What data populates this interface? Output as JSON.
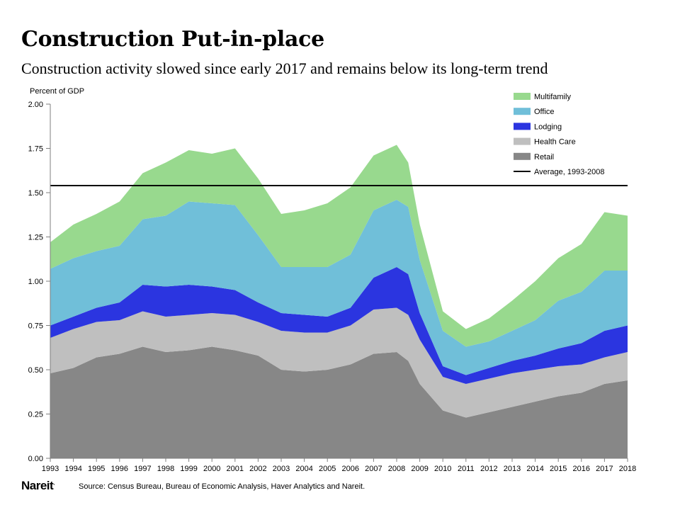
{
  "header": {
    "title": "Construction Put-in-place",
    "subtitle": "Construction activity slowed since early 2017 and remains below its long-term trend"
  },
  "footer": {
    "logo_text": "Nareit",
    "logo_mark": ".",
    "source": "Source: Census Bureau, Bureau of Economic Analysis, Haver Analytics and Nareit."
  },
  "chart_data": {
    "type": "area",
    "stacked": true,
    "ylabel": "Percent of GDP",
    "xlabel": "",
    "ylim": [
      0,
      2
    ],
    "yticks": [
      "0.00",
      "0.25",
      "0.50",
      "0.75",
      "1.00",
      "1.25",
      "1.50",
      "1.75",
      "2.00"
    ],
    "xlim": [
      1993,
      2018
    ],
    "xticks": [
      "1993",
      "1994",
      "1995",
      "1996",
      "1997",
      "1998",
      "1999",
      "2000",
      "2001",
      "2002",
      "2003",
      "2004",
      "2005",
      "2006",
      "2007",
      "2008",
      "2009",
      "2010",
      "2011",
      "2012",
      "2013",
      "2014",
      "2015",
      "2016",
      "2017",
      "2018"
    ],
    "grid": false,
    "legend_position": "top-right",
    "x": [
      1993,
      1994,
      1995,
      1996,
      1997,
      1998,
      1999,
      2000,
      2001,
      2002,
      2003,
      2004,
      2005,
      2006,
      2007,
      2008,
      2008.5,
      2009,
      2010,
      2011,
      2012,
      2013,
      2014,
      2015,
      2016,
      2017,
      2018
    ],
    "series": [
      {
        "name": "Retail",
        "color": "#878787",
        "values": [
          0.48,
          0.51,
          0.57,
          0.59,
          0.63,
          0.6,
          0.61,
          0.63,
          0.61,
          0.58,
          0.5,
          0.49,
          0.5,
          0.53,
          0.59,
          0.6,
          0.55,
          0.42,
          0.27,
          0.23,
          0.26,
          0.29,
          0.32,
          0.35,
          0.37,
          0.42,
          0.44
        ]
      },
      {
        "name": "Health Care",
        "color": "#bfbfbf",
        "values": [
          0.2,
          0.22,
          0.2,
          0.19,
          0.2,
          0.2,
          0.2,
          0.19,
          0.2,
          0.19,
          0.22,
          0.22,
          0.21,
          0.22,
          0.25,
          0.25,
          0.26,
          0.25,
          0.19,
          0.19,
          0.19,
          0.19,
          0.18,
          0.17,
          0.16,
          0.15,
          0.16
        ]
      },
      {
        "name": "Lodging",
        "color": "#2b35e0",
        "values": [
          0.07,
          0.07,
          0.08,
          0.1,
          0.15,
          0.17,
          0.17,
          0.15,
          0.14,
          0.11,
          0.1,
          0.1,
          0.09,
          0.1,
          0.18,
          0.23,
          0.23,
          0.15,
          0.06,
          0.05,
          0.06,
          0.07,
          0.08,
          0.1,
          0.12,
          0.15,
          0.15
        ]
      },
      {
        "name": "Office",
        "color": "#70bfd9",
        "values": [
          0.32,
          0.33,
          0.32,
          0.32,
          0.37,
          0.4,
          0.47,
          0.47,
          0.48,
          0.38,
          0.26,
          0.27,
          0.28,
          0.3,
          0.38,
          0.38,
          0.38,
          0.3,
          0.2,
          0.16,
          0.15,
          0.17,
          0.2,
          0.27,
          0.29,
          0.34,
          0.31
        ]
      },
      {
        "name": "Multifamily",
        "color": "#98d98e",
        "values": [
          0.15,
          0.19,
          0.21,
          0.25,
          0.26,
          0.3,
          0.29,
          0.28,
          0.32,
          0.32,
          0.3,
          0.32,
          0.36,
          0.38,
          0.31,
          0.31,
          0.25,
          0.2,
          0.11,
          0.1,
          0.13,
          0.17,
          0.22,
          0.24,
          0.27,
          0.33,
          0.31
        ]
      }
    ],
    "reference_line": {
      "name": "Average, 1993-2008",
      "value": 1.54,
      "color": "#000000"
    }
  }
}
